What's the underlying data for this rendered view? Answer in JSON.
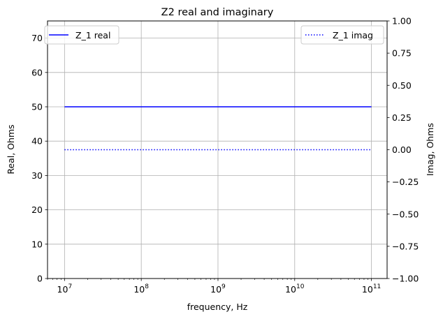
{
  "chart_data": {
    "type": "line",
    "title": "Z2 real and imaginary",
    "xlabel": "frequency, Hz",
    "ylabel": "Real, Ohms",
    "ylabel_right": "Imag, Ohms",
    "x_scale": "log",
    "x_decades": [
      7,
      8,
      9,
      10,
      11
    ],
    "xlim": [
      6000000,
      160000000000
    ],
    "ylim": [
      0,
      75
    ],
    "ylim_right": [
      -1.0,
      1.0
    ],
    "y_ticks": [
      "0",
      "10",
      "20",
      "30",
      "40",
      "50",
      "60",
      "70"
    ],
    "y_ticks_right": [
      "−1.00",
      "−0.75",
      "−0.50",
      "−0.25",
      "0.00",
      "0.25",
      "0.50",
      "0.75",
      "1.00"
    ],
    "grid": true,
    "series": [
      {
        "name": "Z_1 real",
        "axis": "left",
        "style": "solid",
        "color": "#0000ff",
        "x": [
          10000000,
          100000000000
        ],
        "y": [
          50,
          50
        ],
        "legend": "top-left"
      },
      {
        "name": "Z_1 imag",
        "axis": "right",
        "style": "dotted",
        "color": "#0000ff",
        "x": [
          10000000,
          100000000000
        ],
        "y": [
          0,
          0
        ],
        "legend": "top-right"
      }
    ]
  }
}
